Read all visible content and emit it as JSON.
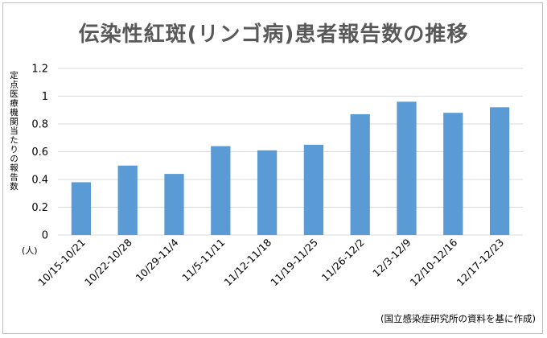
{
  "chart_data": {
    "type": "bar",
    "title": "伝染性紅斑(リンゴ病)患者報告数の推移",
    "ylabel": "定点医療機関当たりの報告数",
    "unit_label": "(人)",
    "source_note": "(国立感染症研究所の資料を基に作成)",
    "categories": [
      "10/15-10/21",
      "10/22-10/28",
      "10/29-11/4",
      "11/5-11/11",
      "11/12-11/18",
      "11/19-11/25",
      "11/26-12/2",
      "12/3-12/9",
      "12/10-12/16",
      "12/17-12/23"
    ],
    "values": [
      0.38,
      0.5,
      0.44,
      0.64,
      0.61,
      0.65,
      0.87,
      0.96,
      0.88,
      0.92
    ],
    "yticks": [
      "0",
      "0.2",
      "0.4",
      "0.6",
      "0.8",
      "1",
      "1.2"
    ],
    "ylim": [
      0,
      1.2
    ],
    "grid": true,
    "legend": "none",
    "bar_color": "#5b9bd5",
    "grid_color": "#d9d9d9"
  }
}
